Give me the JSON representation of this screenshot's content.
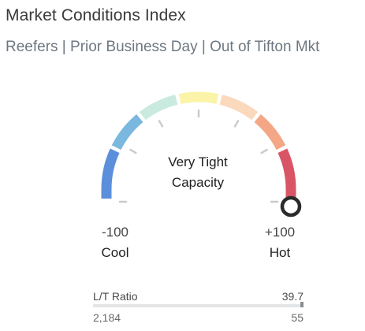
{
  "header": {
    "title": "Market Conditions Index",
    "subtitle": "Reefers | Prior Business Day | Out of Tifton Mkt"
  },
  "gauge": {
    "status_line1": "Very Tight",
    "status_line2": "Capacity",
    "min_value": "-100",
    "min_label": "Cool",
    "max_value": "+100",
    "max_label": "Hot",
    "indicator_value": 100,
    "segment_colors": [
      "#5b8fdb",
      "#7ab8df",
      "#c9eadf",
      "#fbf3a7",
      "#fbd9bc",
      "#f4a786",
      "#d95566"
    ]
  },
  "ratio": {
    "label": "L/T Ratio",
    "value": "39.7",
    "loads": "2,184",
    "trucks": "55",
    "fill_fraction": 1.0
  }
}
